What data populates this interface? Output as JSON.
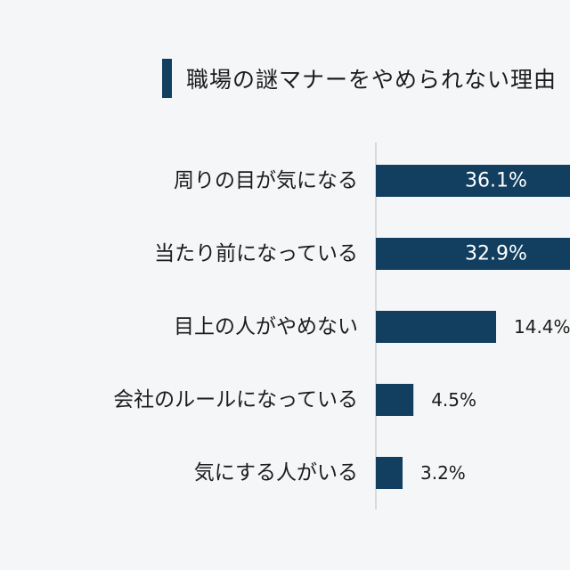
{
  "chart_data": {
    "type": "bar",
    "orientation": "horizontal",
    "title": "職場の謎マナーをやめられない理由",
    "categories": [
      "周りの目が気になる",
      "当たり前になっている",
      "目上の人がやめない",
      "会社のルールになっている",
      "気にする人がいる"
    ],
    "values": [
      36.1,
      32.9,
      14.4,
      4.5,
      3.2
    ],
    "value_labels": [
      "36.1%",
      "32.9%",
      "14.4%",
      "4.5%",
      "3.2%"
    ],
    "unit": "%",
    "xlim": [
      0,
      40
    ],
    "grid": false,
    "legend": "none",
    "bar_color": "#123f60"
  }
}
